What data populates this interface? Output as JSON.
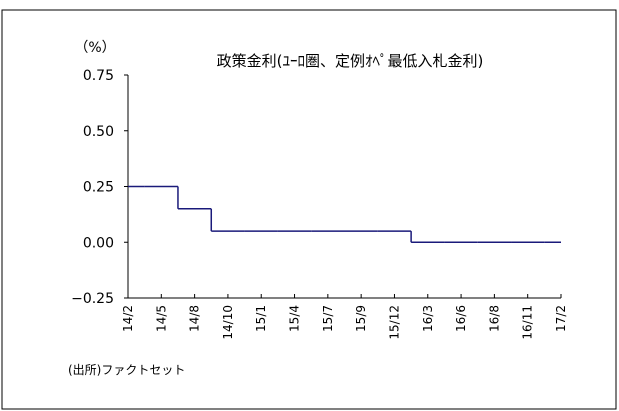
{
  "chart_data": {
    "type": "line",
    "title": "政策金利(ﾕｰﾛ圏、定例ｵﾍﾟ最低入札金利)",
    "y_label": "（%）",
    "source": "(出所)ファクトセット",
    "categories": [
      "14/2",
      "14/5",
      "14/8",
      "14/10",
      "15/1",
      "15/4",
      "15/7",
      "15/9",
      "15/12",
      "16/3",
      "16/6",
      "16/8",
      "16/11",
      "17/2"
    ],
    "series": [
      {
        "name": "政策金利",
        "color": "#1a1a7a",
        "values": [
          0.25,
          0.25,
          0.15,
          0.05,
          0.05,
          0.05,
          0.05,
          0.05,
          0.05,
          0,
          0,
          0,
          0,
          0
        ]
      }
    ],
    "ylim": [
      -0.25,
      0.75
    ],
    "yticks": [
      {
        "value": -0.25,
        "label": "−0.25"
      },
      {
        "value": 0,
        "label": "0.00"
      },
      0.25,
      {
        "value": 0.5,
        "label": "0.50"
      },
      0.75
    ],
    "grid": false
  }
}
